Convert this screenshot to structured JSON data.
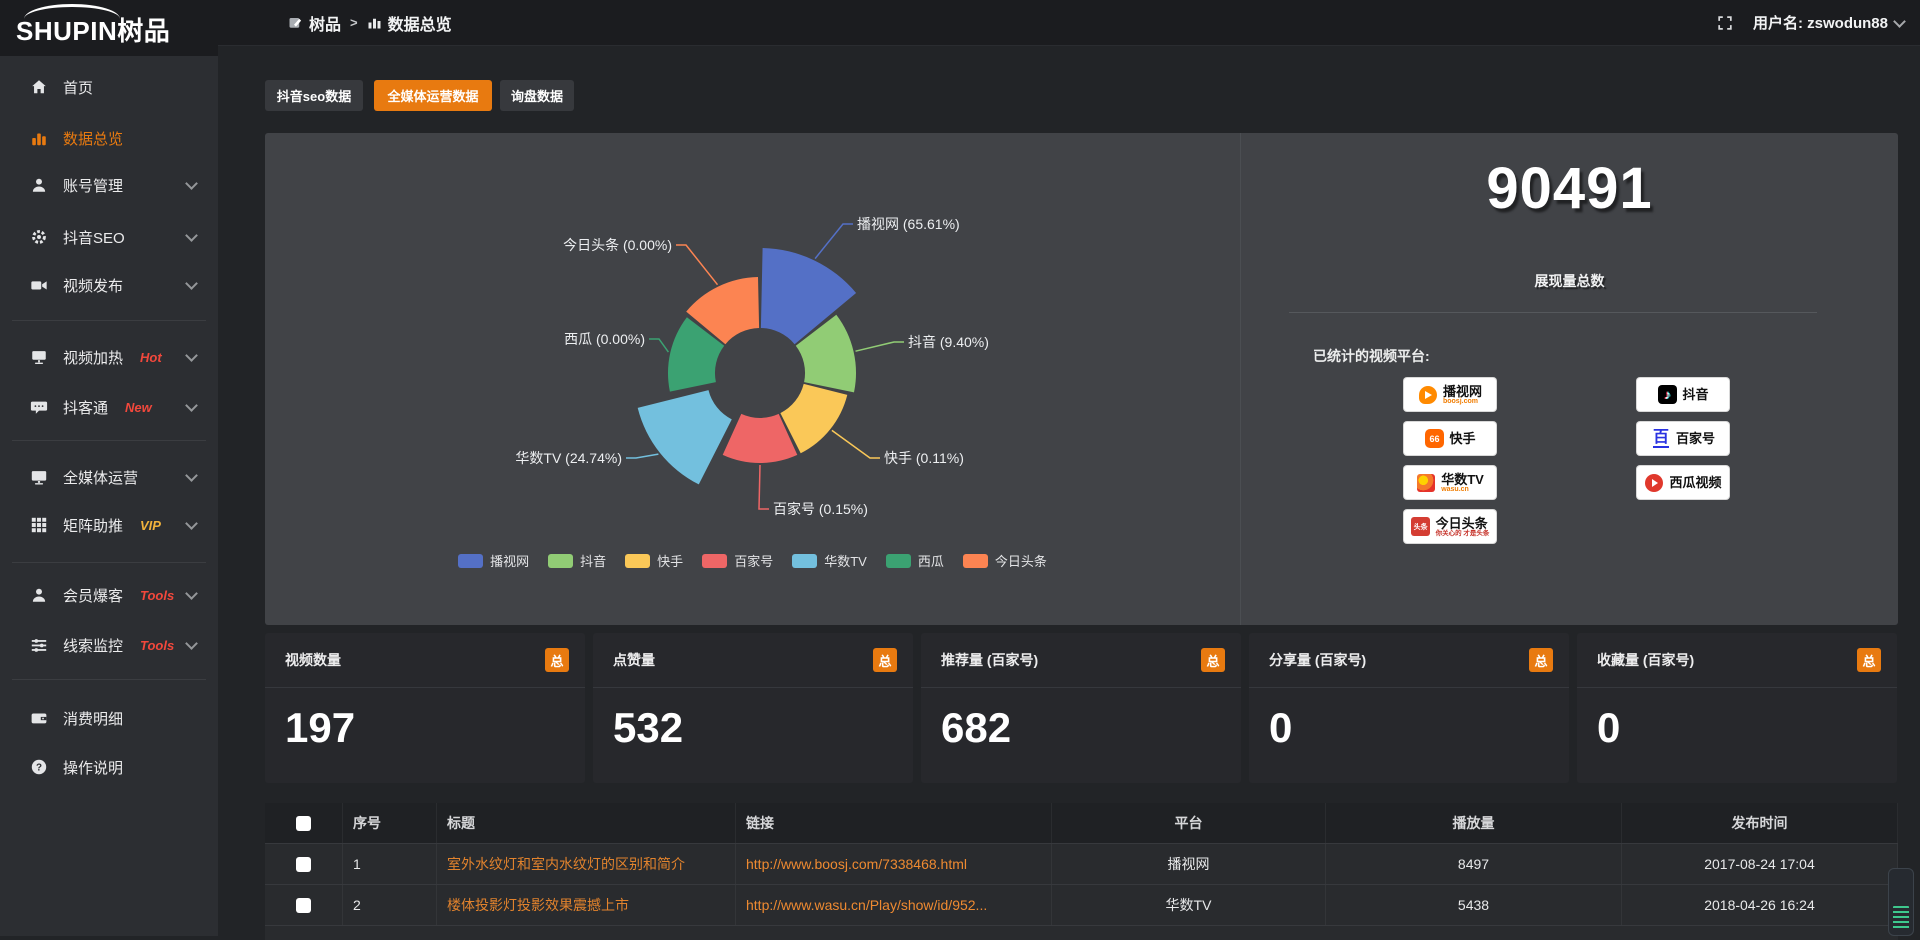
{
  "accent_color": "#e87a10",
  "header": {
    "logo_text": "SHUPIN",
    "logo_cn": "树品",
    "breadcrumb": [
      {
        "label": "树品"
      },
      {
        "label": "数据总览"
      }
    ],
    "breadcrumb_separator": ">",
    "username": "用户名: zswodun88"
  },
  "sidebar": {
    "items": [
      {
        "label": "首页"
      },
      {
        "label": "数据总览",
        "active": true
      },
      {
        "label": "账号管理"
      },
      {
        "label": "抖音SEO"
      },
      {
        "label": "视频发布"
      },
      {
        "label": "视频加热",
        "badge": "Hot",
        "badge_color": "#f2483c"
      },
      {
        "label": "抖客通",
        "badge": "New",
        "badge_color": "#f2483c"
      },
      {
        "label": "全媒体运营"
      },
      {
        "label": "矩阵助推",
        "badge": "VIP",
        "badge_color": "#f2b33c"
      },
      {
        "label": "会员爆客",
        "badge": "Tools",
        "badge_color": "#f2483c"
      },
      {
        "label": "线索监控",
        "badge": "Tools",
        "badge_color": "#f2483c"
      },
      {
        "label": "消费明细"
      },
      {
        "label": "操作说明"
      }
    ]
  },
  "tabs": [
    {
      "label": "抖音seo数据",
      "active": false
    },
    {
      "label": "全媒体运营数据",
      "active": true
    },
    {
      "label": "询盘数据",
      "active": false
    }
  ],
  "chart_data": {
    "type": "pie",
    "subtype": "nightingale-rose",
    "equal_angles": true,
    "inner_radius": 45,
    "start_angle_deg": 0,
    "legend_position": "bottom",
    "series": [
      {
        "name": "播视网",
        "pct": 65.61,
        "label": "播视网 (65.61%)",
        "color": "#5470c6",
        "radius": 125,
        "label_pos": {
          "x": 592,
          "y": 91,
          "anchor": "start"
        }
      },
      {
        "name": "抖音",
        "pct": 9.4,
        "label": "抖音 (9.40%)",
        "color": "#91cc75",
        "radius": 96,
        "label_pos": {
          "x": 643,
          "y": 209,
          "anchor": "start"
        }
      },
      {
        "name": "快手",
        "pct": 0.11,
        "label": "快手 (0.11%)",
        "color": "#fac858",
        "radius": 90,
        "label_pos": {
          "x": 619,
          "y": 325,
          "anchor": "start"
        }
      },
      {
        "name": "百家号",
        "pct": 0.15,
        "label": "百家号 (0.15%)",
        "color": "#ee6666",
        "radius": 90,
        "label_pos": {
          "x": 508,
          "y": 376,
          "anchor": "start"
        }
      },
      {
        "name": "华数TV",
        "pct": 24.74,
        "label": "华数TV (24.74%)",
        "color": "#73c0de",
        "radius": 118,
        "explode": 10,
        "label_pos": {
          "x": 357,
          "y": 325,
          "anchor": "end"
        }
      },
      {
        "name": "西瓜",
        "pct": 0.0,
        "label": "西瓜 (0.00%)",
        "color": "#3ba272",
        "radius": 92,
        "label_pos": {
          "x": 380,
          "y": 206,
          "anchor": "end"
        }
      },
      {
        "name": "今日头条",
        "pct": 0.0,
        "label": "今日头条 (0.00%)",
        "color": "#fc8452",
        "radius": 96,
        "label_pos": {
          "x": 407,
          "y": 112,
          "anchor": "end"
        }
      }
    ]
  },
  "summary": {
    "total_value": "90491",
    "total_label": "展现量总数",
    "platforms_label": "已统计的视频平台:",
    "platform_badges": [
      {
        "name": "播视网",
        "sub": "boosj.com"
      },
      {
        "name": "抖音",
        "glyph": "♪"
      },
      {
        "name": "快手",
        "glyph": "66"
      },
      {
        "name": "百家号",
        "glyph": "百"
      },
      {
        "name": "华数TV",
        "sub": "wasu.cn"
      },
      {
        "name": "西瓜视频"
      },
      {
        "name": "今日头条",
        "glyph": "头条",
        "sub": "你关心的 才是头条"
      }
    ]
  },
  "stat_cards": [
    {
      "title": "视频数量",
      "badge": "总",
      "value": "197"
    },
    {
      "title": "点赞量",
      "badge": "总",
      "value": "532"
    },
    {
      "title": "推荐量 (百家号)",
      "badge": "总",
      "value": "682"
    },
    {
      "title": "分享量 (百家号)",
      "badge": "总",
      "value": "0"
    },
    {
      "title": "收藏量 (百家号)",
      "badge": "总",
      "value": "0"
    }
  ],
  "table": {
    "columns": [
      "序号",
      "标题",
      "链接",
      "平台",
      "播放量",
      "发布时间"
    ],
    "rows": [
      {
        "index": "1",
        "title": "室外水纹灯和室内水纹灯的区别和简介",
        "link": "http://www.boosj.com/7338468.html",
        "platform": "播视网",
        "plays": "8497",
        "time": "2017-08-24 17:04"
      },
      {
        "index": "2",
        "title": "楼体投影灯投影效果震撼上市",
        "link": "http://www.wasu.cn/Play/show/id/952...",
        "platform": "华数TV",
        "plays": "5438",
        "time": "2018-04-26 16:24"
      }
    ]
  }
}
